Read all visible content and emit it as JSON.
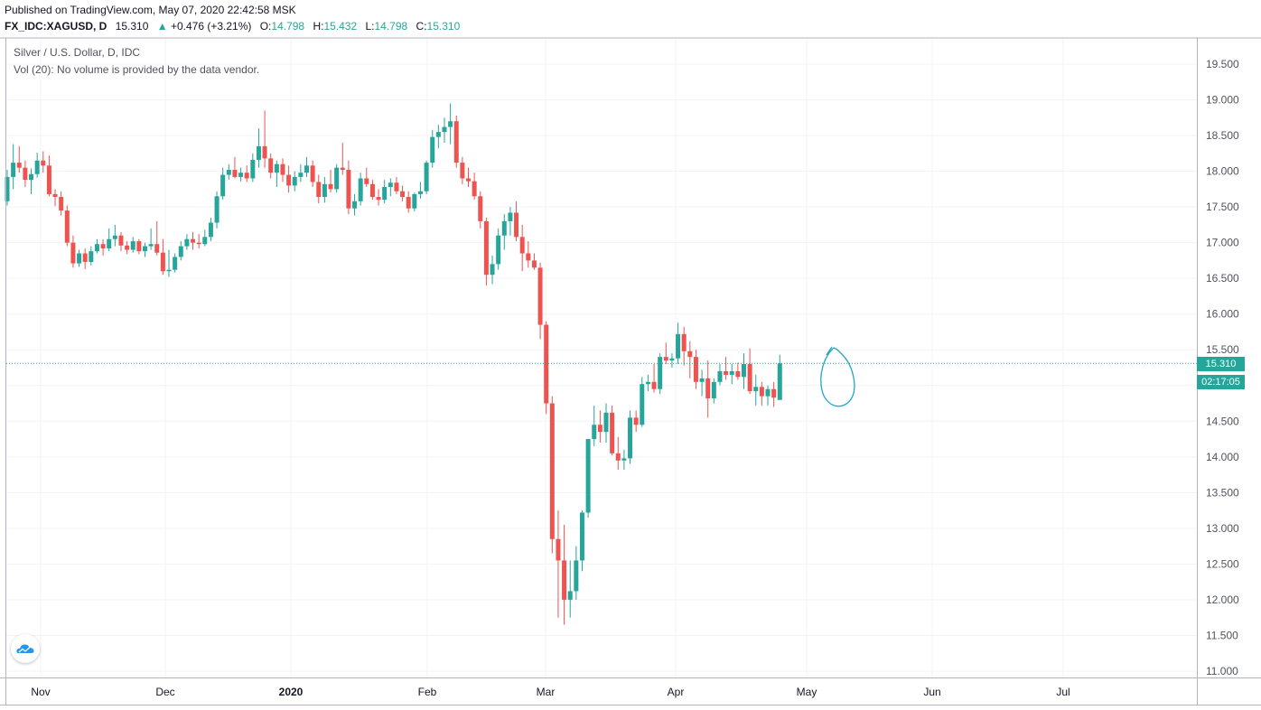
{
  "header": {
    "published": "Published on TradingView.com, May 07, 2020 22:42:58 MSK",
    "symbol": "FX_IDC:XAGUSD, D",
    "last": "15.310",
    "change_arrow": "▲",
    "change": "+0.476 (+3.21%)",
    "open_label": "O:",
    "open": "14.798",
    "high_label": "H:",
    "high": "15.432",
    "low_label": "L:",
    "low": "14.798",
    "close_label": "C:",
    "close": "15.310"
  },
  "legend": {
    "title": "Silver / U.S. Dollar, D, IDC",
    "volume_note": "Vol (20): No volume is provided by the data vendor."
  },
  "price_badge": "15.310",
  "countdown_badge": "02:17:05",
  "colors": {
    "up": "#26a69a",
    "down": "#ef5350",
    "grid": "#f0f3fa",
    "axis": "#50535e",
    "annotation": "#22a7c4"
  },
  "icons": {
    "logo": "tradingview-cloud-icon"
  },
  "chart_data": {
    "type": "candlestick",
    "title": "Silver / U.S. Dollar, D, IDC",
    "ylim": [
      11.0,
      19.75
    ],
    "y_ticks": [
      "19.500",
      "19.000",
      "18.500",
      "18.000",
      "17.500",
      "17.000",
      "16.500",
      "16.000",
      "15.500",
      "15.000",
      "14.500",
      "14.000",
      "13.500",
      "13.000",
      "12.500",
      "12.000",
      "11.500",
      "11.000"
    ],
    "x_ticks": [
      "Nov",
      "Dec",
      "2020",
      "Feb",
      "Mar",
      "Apr",
      "May",
      "Jun",
      "Jul"
    ],
    "last_price": 15.31,
    "grid": true,
    "candles": [
      [
        17.58,
        18.02,
        17.52,
        17.92
      ],
      [
        17.92,
        18.38,
        17.75,
        18.12
      ],
      [
        18.12,
        18.35,
        17.98,
        18.05
      ],
      [
        18.05,
        18.15,
        17.78,
        17.88
      ],
      [
        17.88,
        18.04,
        17.68,
        17.96
      ],
      [
        17.96,
        18.26,
        17.91,
        18.15
      ],
      [
        18.15,
        18.28,
        17.98,
        18.08
      ],
      [
        18.08,
        18.22,
        17.65,
        17.68
      ],
      [
        17.68,
        17.75,
        17.51,
        17.64
      ],
      [
        17.64,
        17.72,
        17.38,
        17.45
      ],
      [
        17.45,
        17.52,
        16.95,
        17.0
      ],
      [
        17.0,
        17.1,
        16.65,
        16.71
      ],
      [
        16.71,
        16.9,
        16.66,
        16.85
      ],
      [
        16.85,
        16.92,
        16.63,
        16.73
      ],
      [
        16.73,
        16.95,
        16.68,
        16.88
      ],
      [
        16.88,
        17.05,
        16.85,
        16.98
      ],
      [
        16.98,
        17.05,
        16.82,
        16.92
      ],
      [
        16.92,
        17.2,
        16.88,
        17.05
      ],
      [
        17.05,
        17.25,
        16.95,
        17.1
      ],
      [
        17.1,
        17.15,
        16.88,
        16.96
      ],
      [
        16.96,
        17.02,
        16.84,
        16.9
      ],
      [
        16.9,
        17.08,
        16.86,
        17.02
      ],
      [
        17.02,
        17.05,
        16.84,
        16.88
      ],
      [
        16.88,
        17.0,
        16.8,
        16.95
      ],
      [
        16.95,
        17.2,
        16.9,
        16.98
      ],
      [
        16.98,
        17.3,
        16.82,
        16.86
      ],
      [
        16.86,
        17.05,
        16.55,
        16.6
      ],
      [
        16.6,
        16.9,
        16.52,
        16.62
      ],
      [
        16.62,
        16.85,
        16.58,
        16.8
      ],
      [
        16.8,
        17.02,
        16.75,
        16.95
      ],
      [
        16.95,
        17.12,
        16.9,
        17.05
      ],
      [
        17.05,
        17.15,
        16.9,
        17.0
      ],
      [
        17.0,
        17.12,
        16.92,
        16.98
      ],
      [
        16.98,
        17.18,
        16.95,
        17.08
      ],
      [
        17.08,
        17.35,
        17.02,
        17.28
      ],
      [
        17.28,
        17.72,
        17.2,
        17.65
      ],
      [
        17.65,
        18.05,
        17.6,
        17.95
      ],
      [
        17.95,
        18.1,
        17.88,
        18.02
      ],
      [
        18.02,
        18.2,
        17.9,
        17.92
      ],
      [
        17.92,
        18.05,
        17.86,
        17.98
      ],
      [
        17.98,
        18.08,
        17.85,
        17.9
      ],
      [
        17.9,
        18.25,
        17.85,
        18.16
      ],
      [
        18.16,
        18.6,
        18.05,
        18.35
      ],
      [
        18.35,
        18.85,
        18.05,
        18.18
      ],
      [
        18.18,
        18.25,
        17.9,
        17.98
      ],
      [
        17.98,
        18.15,
        17.78,
        18.1
      ],
      [
        18.1,
        18.18,
        17.85,
        17.95
      ],
      [
        17.95,
        18.08,
        17.7,
        17.8
      ],
      [
        17.8,
        18.0,
        17.72,
        17.92
      ],
      [
        17.92,
        18.1,
        17.85,
        17.98
      ],
      [
        17.98,
        18.2,
        17.92,
        18.08
      ],
      [
        18.08,
        18.15,
        17.78,
        17.85
      ],
      [
        17.85,
        17.95,
        17.55,
        17.64
      ],
      [
        17.64,
        17.92,
        17.56,
        17.82
      ],
      [
        17.82,
        18.02,
        17.7,
        17.75
      ],
      [
        17.75,
        18.1,
        17.7,
        18.05
      ],
      [
        18.05,
        18.4,
        17.95,
        18.02
      ],
      [
        18.02,
        18.15,
        17.4,
        17.48
      ],
      [
        17.48,
        17.68,
        17.38,
        17.58
      ],
      [
        17.58,
        17.98,
        17.52,
        17.9
      ],
      [
        17.9,
        18.05,
        17.78,
        17.82
      ],
      [
        17.82,
        17.88,
        17.6,
        17.64
      ],
      [
        17.64,
        17.75,
        17.52,
        17.6
      ],
      [
        17.6,
        17.88,
        17.55,
        17.78
      ],
      [
        17.78,
        17.9,
        17.65,
        17.84
      ],
      [
        17.84,
        17.92,
        17.68,
        17.72
      ],
      [
        17.72,
        17.8,
        17.58,
        17.64
      ],
      [
        17.64,
        17.72,
        17.42,
        17.48
      ],
      [
        17.48,
        17.7,
        17.44,
        17.68
      ],
      [
        17.68,
        17.85,
        17.62,
        17.72
      ],
      [
        17.72,
        18.15,
        17.68,
        18.12
      ],
      [
        18.12,
        18.58,
        18.05,
        18.48
      ],
      [
        18.48,
        18.65,
        18.32,
        18.55
      ],
      [
        18.55,
        18.75,
        18.4,
        18.62
      ],
      [
        18.62,
        18.95,
        18.38,
        18.7
      ],
      [
        18.7,
        18.78,
        18.05,
        18.12
      ],
      [
        18.12,
        18.2,
        17.82,
        17.9
      ],
      [
        17.9,
        18.05,
        17.78,
        17.86
      ],
      [
        17.86,
        17.98,
        17.6,
        17.65
      ],
      [
        17.65,
        17.72,
        17.2,
        17.3
      ],
      [
        17.3,
        17.35,
        16.4,
        16.55
      ],
      [
        16.55,
        16.82,
        16.42,
        16.7
      ],
      [
        16.7,
        17.2,
        16.62,
        17.1
      ],
      [
        17.1,
        17.4,
        16.9,
        17.3
      ],
      [
        17.3,
        17.5,
        17.1,
        17.42
      ],
      [
        17.42,
        17.58,
        17.02,
        17.08
      ],
      [
        17.08,
        17.25,
        16.6,
        16.85
      ],
      [
        16.85,
        17.02,
        16.65,
        16.75
      ],
      [
        16.75,
        16.85,
        16.62,
        16.65
      ],
      [
        16.65,
        16.72,
        15.65,
        15.85
      ],
      [
        15.85,
        15.9,
        14.6,
        14.75
      ],
      [
        14.75,
        14.85,
        12.65,
        12.85
      ],
      [
        12.85,
        13.25,
        11.75,
        12.55
      ],
      [
        12.55,
        13.05,
        11.65,
        12.0
      ],
      [
        12.0,
        12.55,
        11.75,
        12.12
      ],
      [
        12.12,
        12.75,
        12.0,
        12.55
      ],
      [
        12.55,
        13.25,
        12.4,
        13.22
      ],
      [
        13.22,
        14.25,
        13.15,
        14.25
      ],
      [
        14.25,
        14.72,
        14.15,
        14.45
      ],
      [
        14.45,
        14.65,
        14.2,
        14.35
      ],
      [
        14.35,
        14.75,
        14.2,
        14.62
      ],
      [
        14.62,
        14.72,
        14.02,
        14.05
      ],
      [
        14.05,
        14.28,
        13.82,
        13.95
      ],
      [
        13.95,
        14.1,
        13.82,
        13.98
      ],
      [
        13.98,
        14.65,
        13.9,
        14.55
      ],
      [
        14.55,
        14.65,
        14.35,
        14.45
      ],
      [
        14.45,
        15.12,
        14.42,
        15.02
      ],
      [
        15.02,
        15.15,
        14.92,
        15.05
      ],
      [
        15.05,
        15.3,
        14.9,
        14.95
      ],
      [
        14.95,
        15.45,
        14.88,
        15.4
      ],
      [
        15.4,
        15.6,
        15.3,
        15.35
      ],
      [
        15.35,
        15.45,
        15.25,
        15.38
      ],
      [
        15.38,
        15.88,
        15.3,
        15.72
      ],
      [
        15.72,
        15.82,
        15.28,
        15.48
      ],
      [
        15.48,
        15.62,
        15.1,
        15.4
      ],
      [
        15.4,
        15.5,
        14.95,
        15.05
      ],
      [
        15.05,
        15.22,
        14.85,
        15.1
      ],
      [
        15.1,
        15.35,
        14.55,
        14.82
      ],
      [
        14.82,
        15.1,
        14.75,
        15.05
      ],
      [
        15.05,
        15.3,
        15.0,
        15.2
      ],
      [
        15.2,
        15.4,
        15.08,
        15.15
      ],
      [
        15.15,
        15.3,
        15.02,
        15.2
      ],
      [
        15.2,
        15.32,
        15.08,
        15.12
      ],
      [
        15.12,
        15.45,
        14.95,
        15.3
      ],
      [
        15.3,
        15.52,
        14.88,
        14.92
      ],
      [
        14.92,
        15.15,
        14.72,
        14.98
      ],
      [
        14.98,
        15.05,
        14.72,
        14.85
      ],
      [
        14.85,
        15.0,
        14.72,
        14.95
      ],
      [
        14.95,
        15.05,
        14.7,
        14.83
      ],
      [
        14.798,
        15.432,
        14.798,
        15.31
      ]
    ]
  }
}
